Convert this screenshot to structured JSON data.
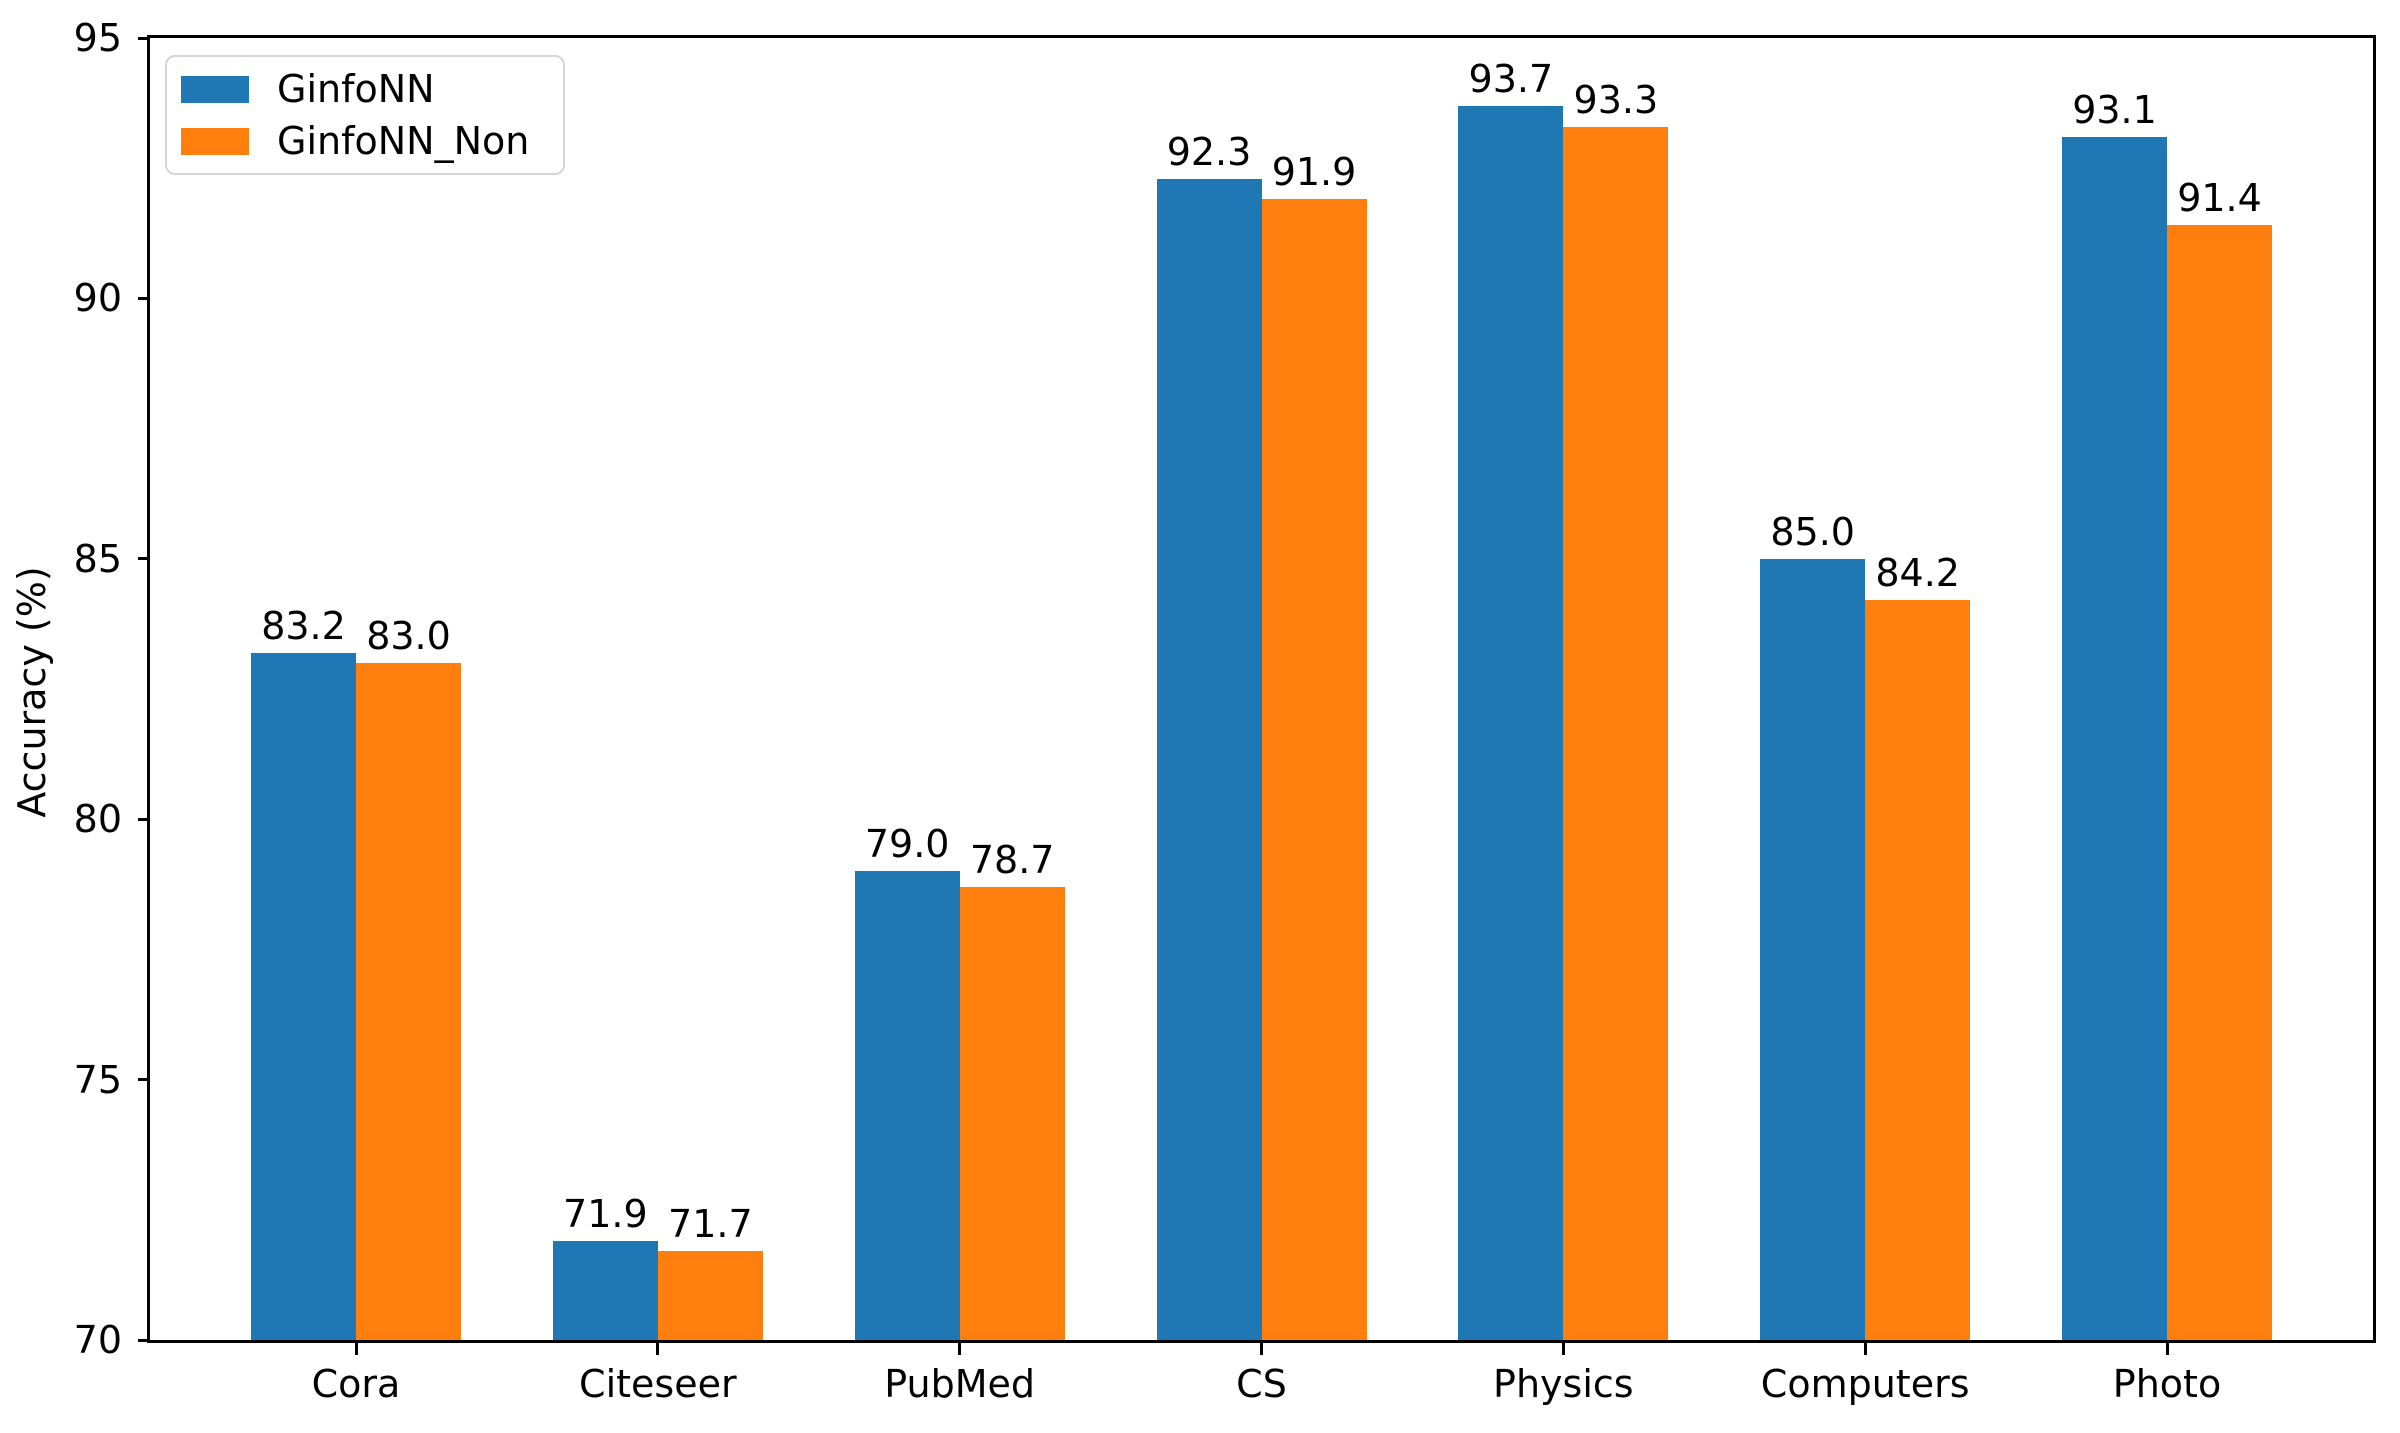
{
  "chart_data": {
    "type": "bar",
    "title": "",
    "categories": [
      "Cora",
      "Citeseer",
      "PubMed",
      "CS",
      "Physics",
      "Computers",
      "Photo"
    ],
    "series": [
      {
        "name": "GinfoNN",
        "color": "#1f77b4",
        "values": [
          83.2,
          71.9,
          79.0,
          92.3,
          93.7,
          85.0,
          93.1
        ]
      },
      {
        "name": "GinfoNN_Non",
        "color": "#ff7f0e",
        "values": [
          83.0,
          71.7,
          78.7,
          91.9,
          93.3,
          84.2,
          91.4
        ]
      }
    ],
    "xlabel": "",
    "ylabel": "Accuracy (%)",
    "ylim": [
      70,
      95
    ],
    "yticks": [
      70,
      75,
      80,
      85,
      90,
      95
    ],
    "grid": false,
    "legend_position": "upper-left",
    "value_labels": true,
    "value_label_decimals": 1,
    "bar_value_unit": "%",
    "axis_color": "#000000",
    "background_color": "#ffffff"
  }
}
